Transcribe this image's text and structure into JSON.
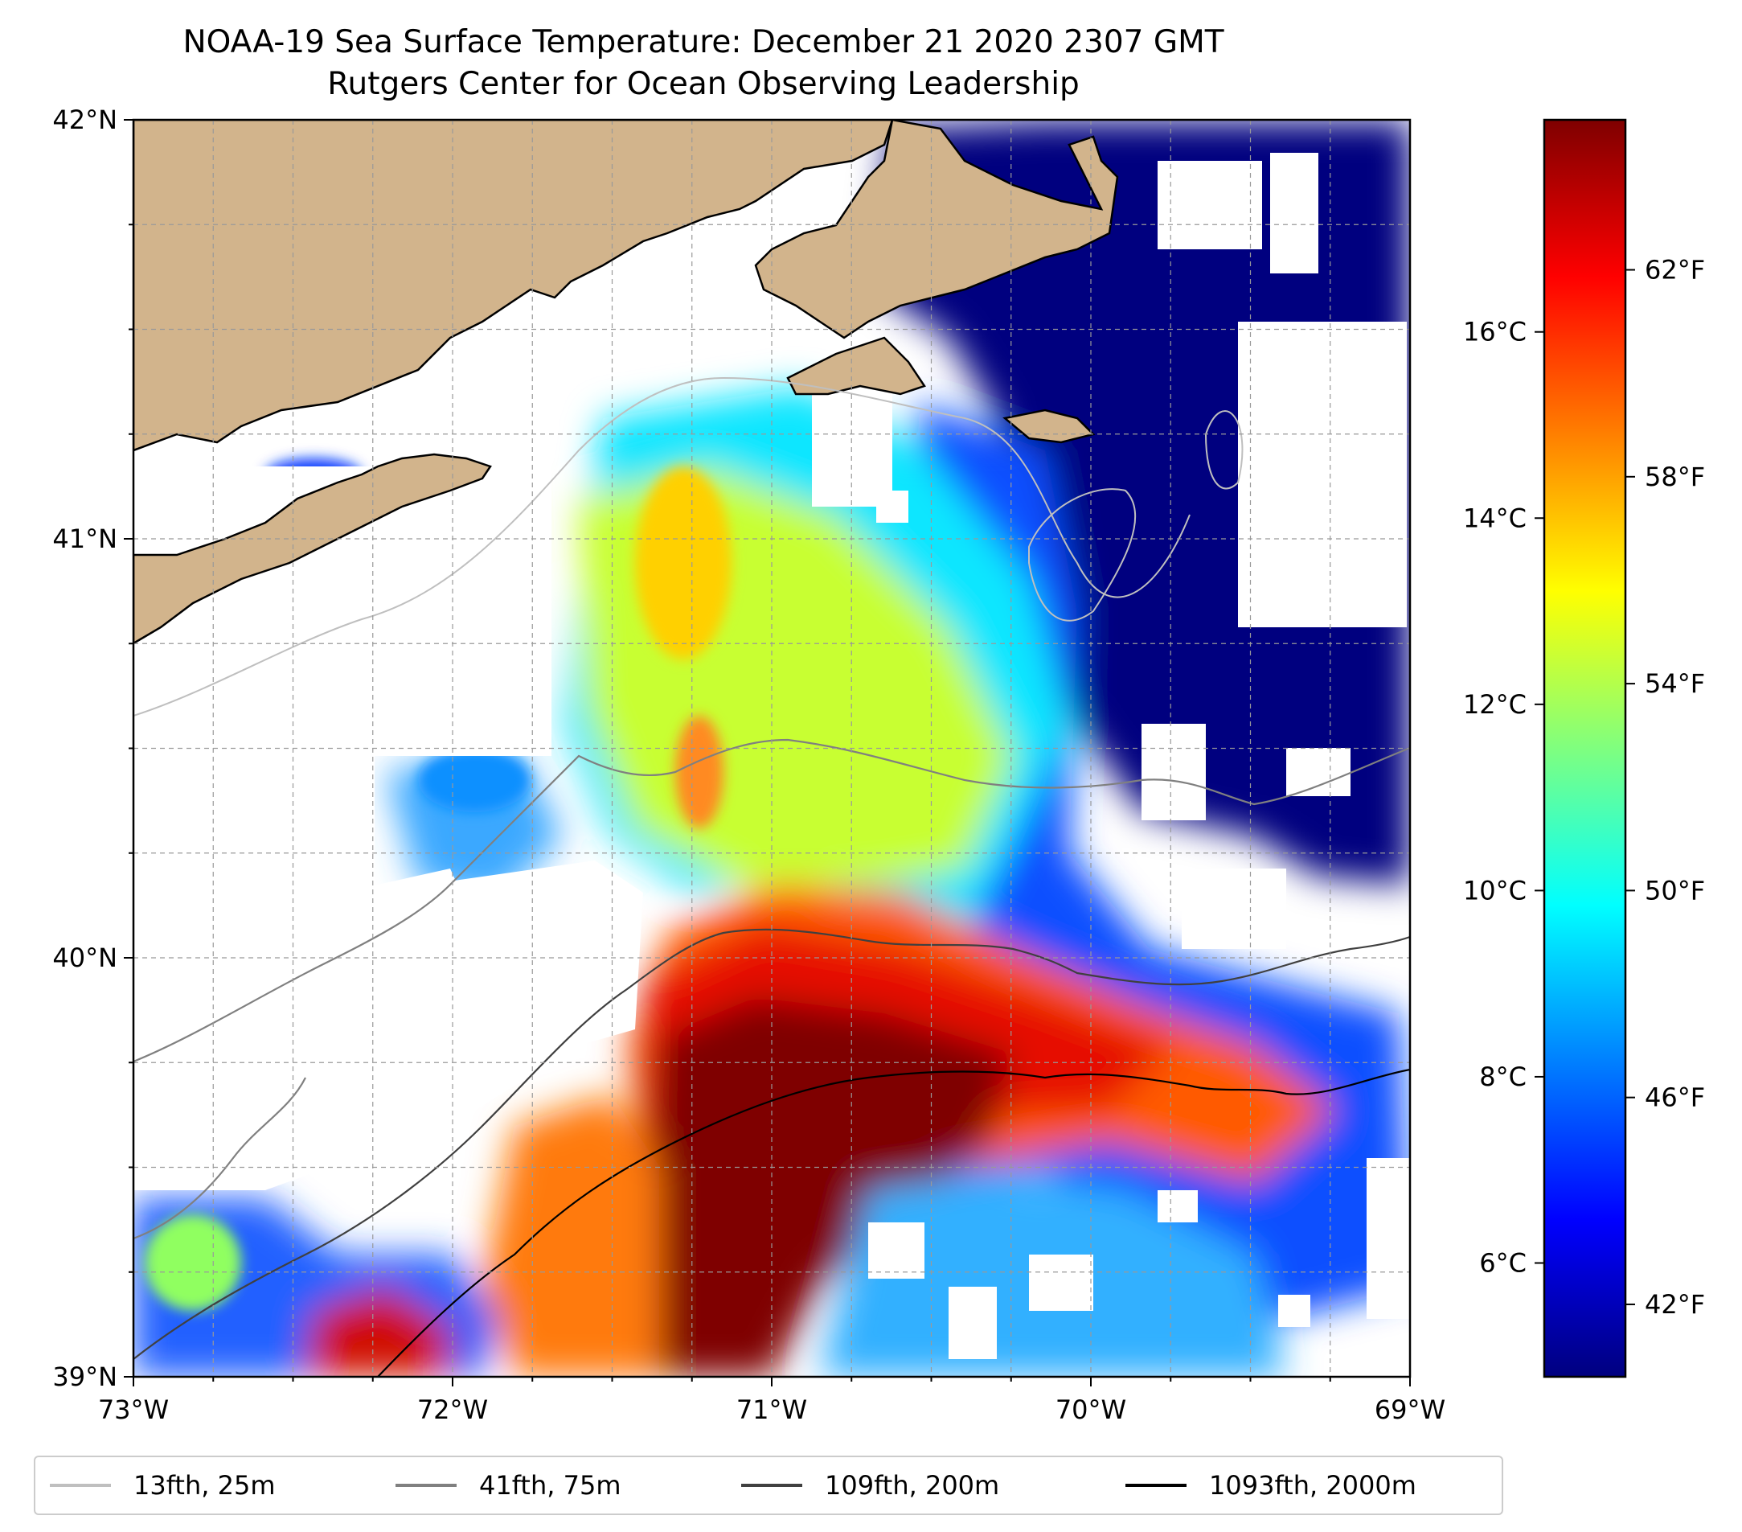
{
  "title": {
    "line1": "NOAA-19 Sea Surface Temperature: December 21 2020 2307 GMT",
    "line2": "Rutgers Center for Ocean Observing Leadership"
  },
  "map": {
    "lon_range": [
      -73,
      -69
    ],
    "lat_range": [
      39,
      42
    ],
    "gridlines": "dashed",
    "land_color": "#d2b48c",
    "lon_ticks": [
      {
        "value": -73,
        "label": "73°W"
      },
      {
        "value": -72,
        "label": "72°W"
      },
      {
        "value": -71,
        "label": "71°W"
      },
      {
        "value": -70,
        "label": "70°W"
      },
      {
        "value": -69,
        "label": "69°W"
      }
    ],
    "lat_ticks": [
      {
        "value": 39,
        "label": "39°N"
      },
      {
        "value": 40,
        "label": "40°N"
      },
      {
        "value": 41,
        "label": "41°N"
      },
      {
        "value": 42,
        "label": "42°N"
      }
    ]
  },
  "colorbar": {
    "colormap": "jet",
    "range_f": [
      40.6,
      64.9
    ],
    "colors": [
      "#00007f",
      "#0000ff",
      "#007fff",
      "#00ffff",
      "#7fff7f",
      "#ffff00",
      "#ff7f00",
      "#ff0000",
      "#7f0000"
    ],
    "fahrenheit_ticks": [
      {
        "value": 42,
        "label": "42°F"
      },
      {
        "value": 46,
        "label": "46°F"
      },
      {
        "value": 50,
        "label": "50°F"
      },
      {
        "value": 54,
        "label": "54°F"
      },
      {
        "value": 58,
        "label": "58°F"
      },
      {
        "value": 62,
        "label": "62°F"
      }
    ],
    "celsius_ticks": [
      {
        "value": 6,
        "label": "6°C"
      },
      {
        "value": 8,
        "label": "8°C"
      },
      {
        "value": 10,
        "label": "10°C"
      },
      {
        "value": 12,
        "label": "12°C"
      },
      {
        "value": 14,
        "label": "14°C"
      },
      {
        "value": 16,
        "label": "16°C"
      }
    ]
  },
  "legend": {
    "placement": "bottom",
    "items": [
      {
        "label": "13fth, 25m",
        "color": "#bfbfbf"
      },
      {
        "label": "41fth, 75m",
        "color": "#808080"
      },
      {
        "label": "109fth, 200m",
        "color": "#404040"
      },
      {
        "label": "1093fth, 2000m",
        "color": "#000000"
      }
    ]
  }
}
